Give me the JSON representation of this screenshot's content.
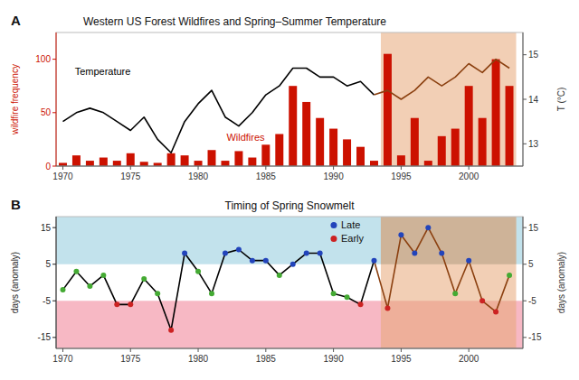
{
  "chart_data": [
    {
      "type": "bar",
      "title": "Western US Forest Wildfires and Spring–Summer Temperature",
      "annotations": [
        "A"
      ],
      "x": [
        1970,
        1971,
        1972,
        1973,
        1974,
        1975,
        1976,
        1977,
        1978,
        1979,
        1980,
        1981,
        1982,
        1983,
        1984,
        1985,
        1986,
        1987,
        1988,
        1989,
        1990,
        1991,
        1992,
        1993,
        1994,
        1995,
        1996,
        1997,
        1998,
        1999,
        2000,
        2001,
        2002,
        2003
      ],
      "xlim": [
        1969.5,
        2004
      ],
      "xticks": [
        1970,
        1975,
        1980,
        1985,
        1990,
        1995,
        2000
      ],
      "ylim": [
        0,
        125
      ],
      "yticks": [
        0,
        50,
        100
      ],
      "y_label": "wildfire frequency",
      "y2lim": [
        12.5,
        15.5
      ],
      "y2ticks": [
        13,
        14,
        15
      ],
      "y2_label": "T (°C)",
      "highlight": [
        1993.5,
        2003.5
      ],
      "series": [
        {
          "name": "Wildfires",
          "type": "bar",
          "color": "#cc1100",
          "values": [
            3,
            10,
            5,
            8,
            5,
            12,
            4,
            3,
            12,
            10,
            5,
            15,
            5,
            14,
            8,
            20,
            30,
            75,
            60,
            45,
            35,
            25,
            18,
            5,
            105,
            10,
            45,
            5,
            28,
            35,
            75,
            45,
            100,
            75
          ]
        },
        {
          "name": "Temperature",
          "type": "line",
          "axis": "y2",
          "colors": [
            "#000000",
            "#000000",
            "#000000",
            "#000000",
            "#000000",
            "#000000",
            "#000000",
            "#000000",
            "#000000",
            "#000000",
            "#000000",
            "#000000",
            "#000000",
            "#000000",
            "#000000",
            "#000000",
            "#000000",
            "#000000",
            "#000000",
            "#000000",
            "#000000",
            "#000000",
            "#000000",
            "#000000",
            "#8B4010",
            "#8B4010",
            "#8B4010",
            "#8B4010",
            "#8B4010",
            "#8B4010",
            "#8B4010",
            "#8B4010",
            "#8B4010",
            "#8B4010"
          ],
          "values": [
            13.5,
            13.7,
            13.8,
            13.7,
            13.5,
            13.3,
            13.6,
            13.1,
            12.8,
            13.5,
            13.9,
            14.2,
            13.6,
            13.4,
            13.7,
            14.1,
            14.3,
            14.7,
            14.7,
            14.5,
            14.5,
            14.3,
            14.4,
            14.1,
            14.2,
            14.0,
            14.2,
            14.5,
            14.3,
            14.5,
            14.8,
            14.6,
            14.9,
            14.7
          ]
        }
      ]
    },
    {
      "type": "line",
      "title": "Timing of Spring Snowmelt",
      "annotations": [
        "B"
      ],
      "x": [
        1970,
        1971,
        1972,
        1973,
        1974,
        1975,
        1976,
        1977,
        1978,
        1979,
        1980,
        1981,
        1982,
        1983,
        1984,
        1985,
        1986,
        1987,
        1988,
        1989,
        1990,
        1991,
        1992,
        1993,
        1994,
        1995,
        1996,
        1997,
        1998,
        1999,
        2000,
        2001,
        2002,
        2003
      ],
      "xlim": [
        1969.5,
        2004
      ],
      "xticks": [
        1970,
        1975,
        1980,
        1985,
        1990,
        1995,
        2000
      ],
      "ylim": [
        -18,
        18
      ],
      "yticks": [
        -15,
        -5,
        5,
        15
      ],
      "y_label": "days (anomaly)",
      "y2lim": [
        -18,
        18
      ],
      "y2ticks": [
        -15,
        -5,
        5,
        15
      ],
      "y2_label": "days (anomaly)",
      "highlight": [
        1993.5,
        2003.5
      ],
      "late_threshold": 5,
      "early_threshold": -5,
      "legend": "upper right",
      "series": [
        {
          "type": "line",
          "colors": [
            "#000000",
            "#000000",
            "#000000",
            "#000000",
            "#000000",
            "#000000",
            "#000000",
            "#000000",
            "#000000",
            "#000000",
            "#000000",
            "#000000",
            "#000000",
            "#000000",
            "#000000",
            "#000000",
            "#000000",
            "#000000",
            "#000000",
            "#000000",
            "#000000",
            "#000000",
            "#000000",
            "#000000",
            "#8B4010",
            "#8B4010",
            "#8B4010",
            "#8B4010",
            "#8B4010",
            "#8B4010",
            "#8B4010",
            "#8B4010",
            "#8B4010",
            "#8B4010"
          ],
          "values": [
            -2,
            3,
            -1,
            2,
            -6,
            -6,
            1,
            -3,
            -13,
            8,
            3,
            -3,
            8,
            9,
            6,
            6,
            2,
            5,
            8,
            8,
            -3,
            -4,
            -6,
            6,
            -7,
            13,
            8,
            15,
            8,
            -3,
            6,
            -5,
            -8,
            2
          ]
        },
        {
          "name": "Late",
          "type": "scatter",
          "color": "#2244bb",
          "values": [
            null,
            null,
            null,
            null,
            null,
            null,
            null,
            null,
            null,
            8,
            null,
            null,
            8,
            9,
            6,
            6,
            null,
            5,
            8,
            8,
            null,
            null,
            null,
            6,
            null,
            13,
            8,
            15,
            8,
            null,
            6,
            null,
            null,
            null
          ]
        },
        {
          "name": "Early",
          "type": "scatter",
          "color": "#cc2222",
          "values": [
            null,
            null,
            null,
            null,
            -6,
            -6,
            null,
            null,
            -13,
            null,
            null,
            null,
            null,
            null,
            null,
            null,
            null,
            null,
            null,
            null,
            null,
            null,
            -6,
            null,
            -7,
            null,
            null,
            null,
            null,
            null,
            null,
            -5,
            -8,
            null
          ]
        },
        {
          "type": "scatter",
          "color": "#44aa33",
          "values": [
            -2,
            3,
            -1,
            2,
            null,
            null,
            1,
            -3,
            null,
            null,
            3,
            -3,
            null,
            null,
            null,
            null,
            2,
            null,
            null,
            null,
            -3,
            -4,
            null,
            null,
            null,
            null,
            null,
            null,
            null,
            -3,
            null,
            null,
            null,
            2
          ]
        }
      ]
    }
  ]
}
